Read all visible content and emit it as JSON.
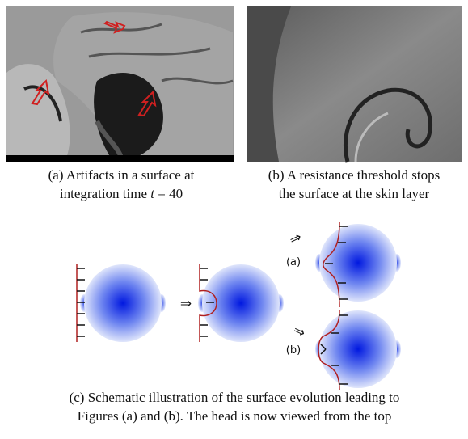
{
  "figures": [
    {
      "caption": [
        "(a) Artifacts in a surface at",
        [
          "integration time ",
          "t",
          " = 40"
        ]
      ]
    },
    {
      "caption": [
        "(b) A resistance threshold stops",
        "the surface at the skin layer"
      ]
    }
  ],
  "schematic": {
    "labels": [
      "(a)",
      "(b)"
    ],
    "caption": [
      "(c) Schematic illustration of the surface evolution leading to",
      "Figures (a) and (b). The head is now viewed from the top"
    ]
  }
}
